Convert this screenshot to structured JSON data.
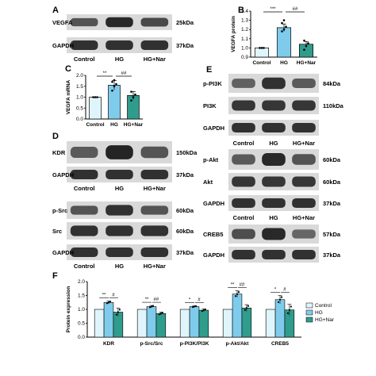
{
  "colors": {
    "control": "#dff5fb",
    "hg": "#7fcbec",
    "hg_nar": "#2f9c8c",
    "axis": "#000000",
    "blot_bg": "#d9d9d9",
    "band": "#1e1e1e"
  },
  "panels": {
    "A": {
      "label": "A",
      "blots": [
        {
          "name": "VEGFA",
          "kda": "25kDa",
          "intensity": [
            0.55,
            0.9,
            0.65
          ]
        },
        {
          "name": "GAPDH",
          "kda": "37kDa",
          "intensity": [
            0.85,
            0.85,
            0.85
          ]
        }
      ],
      "groups": [
        "Control",
        "HG",
        "HG+Nar"
      ]
    },
    "B": {
      "label": "B"
    },
    "C": {
      "label": "C"
    },
    "D": {
      "label": "D",
      "blots_top": [
        {
          "name": "KDR",
          "kda": "150kDa",
          "intensity": [
            0.5,
            0.95,
            0.55
          ]
        },
        {
          "name": "GAPDH",
          "kda": "37kDa",
          "intensity": [
            0.85,
            0.85,
            0.85
          ]
        }
      ],
      "groups_top": [
        "Control",
        "HG",
        "HG+Nar"
      ],
      "blots_bottom": [
        {
          "name": "p-Src",
          "kda": "60kDa",
          "intensity": [
            0.55,
            0.85,
            0.55
          ]
        },
        {
          "name": "Src",
          "kda": "60kDa",
          "intensity": [
            0.85,
            0.85,
            0.85
          ]
        },
        {
          "name": "GAPDH",
          "kda": "37kDa",
          "intensity": [
            0.85,
            0.85,
            0.85
          ]
        }
      ],
      "groups_bottom": [
        "Control",
        "HG",
        "HG+Nar"
      ]
    },
    "E": {
      "label": "E",
      "blots_1": [
        {
          "name": "p-PI3K",
          "kda": "84kDa",
          "intensity": [
            0.45,
            0.85,
            0.5
          ]
        },
        {
          "name": "PI3K",
          "kda": "110kDa",
          "intensity": [
            0.8,
            0.8,
            0.8
          ]
        },
        {
          "name": "GAPDH",
          "kda": "",
          "intensity": [
            0.85,
            0.85,
            0.85
          ]
        }
      ],
      "groups_1": [
        "Control",
        "HG",
        "HG+Nar"
      ],
      "blots_2": [
        {
          "name": "p-Akt",
          "kda": "60kDa",
          "intensity": [
            0.5,
            0.9,
            0.55
          ]
        },
        {
          "name": "Akt",
          "kda": "60kDa",
          "intensity": [
            0.8,
            0.8,
            0.8
          ]
        },
        {
          "name": "GAPDH",
          "kda": "37kDa",
          "intensity": [
            0.85,
            0.85,
            0.85
          ]
        }
      ],
      "groups_2": [
        "Control",
        "HG",
        "HG+Nar"
      ],
      "blots_3": [
        {
          "name": "CREB5",
          "kda": "57kDa",
          "intensity": [
            0.6,
            0.9,
            0.4
          ]
        },
        {
          "name": "GAPDH",
          "kda": "37kDa",
          "intensity": [
            0.85,
            0.85,
            0.85
          ]
        }
      ]
    },
    "F": {
      "label": "F"
    }
  },
  "chart_data": [
    {
      "panel": "B",
      "type": "bar",
      "categories": [
        "Control",
        "HG",
        "HG+Nar"
      ],
      "values": [
        1.0,
        1.22,
        1.04
      ],
      "errors": [
        0.0,
        0.04,
        0.03
      ],
      "points": [
        [
          1.0,
          1.0,
          1.0
        ],
        [
          1.18,
          1.2,
          1.23,
          1.27,
          1.3
        ],
        [
          0.98,
          1.02,
          1.05,
          1.08
        ]
      ],
      "ylabel": "VEGFA protein",
      "ylim": [
        0.9,
        1.4
      ],
      "yticks": [
        "0.9",
        "1.0",
        "1.1",
        "1.2",
        "1.3",
        "1.4"
      ],
      "significance": [
        {
          "from": 0,
          "to": 1,
          "label": "***"
        },
        {
          "from": 1,
          "to": 2,
          "label": "##"
        }
      ]
    },
    {
      "panel": "C",
      "type": "bar",
      "categories": [
        "Control",
        "HG",
        "HG+Nar"
      ],
      "values": [
        1.0,
        1.55,
        1.08
      ],
      "errors": [
        0.0,
        0.22,
        0.18
      ],
      "points": [
        [
          1.0,
          1.0,
          1.0
        ],
        [
          1.3,
          1.5,
          1.6,
          1.7,
          1.78
        ],
        [
          0.85,
          1.0,
          1.12,
          1.25
        ]
      ],
      "ylabel": "VEGFA mRNA",
      "ylim": [
        0.0,
        2.0
      ],
      "yticks": [
        "0.0",
        "0.5",
        "1.0",
        "1.5",
        "2.0"
      ],
      "significance": [
        {
          "from": 0,
          "to": 1,
          "label": "**"
        },
        {
          "from": 1,
          "to": 2,
          "label": "##"
        }
      ]
    },
    {
      "panel": "F",
      "type": "bar",
      "categories": [
        "KDR",
        "p-Src/Src",
        "p-PI3K/PI3K",
        "p-Akt/Akt",
        "CREB5"
      ],
      "series": [
        {
          "name": "Control",
          "values": [
            1.0,
            1.0,
            1.0,
            1.0,
            1.0
          ],
          "errors": [
            0.0,
            0.0,
            0.0,
            0.0,
            0.0
          ]
        },
        {
          "name": "HG",
          "values": [
            1.25,
            1.1,
            1.1,
            1.55,
            1.35
          ],
          "errors": [
            0.05,
            0.04,
            0.03,
            0.12,
            0.15
          ]
        },
        {
          "name": "HG+Nar",
          "values": [
            0.9,
            0.85,
            0.97,
            1.05,
            0.98
          ],
          "errors": [
            0.15,
            0.05,
            0.05,
            0.12,
            0.2
          ]
        }
      ],
      "ylabel": "Protein expression",
      "ylim": [
        0.0,
        2.0
      ],
      "yticks": [
        "0.0",
        "0.5",
        "1.0",
        "1.5",
        "2.0"
      ],
      "legend": {
        "placement": "right",
        "entries": [
          "Control",
          "HG",
          "HG+Nar"
        ]
      },
      "significance": [
        {
          "category": 0,
          "pairs": [
            "**",
            "#"
          ]
        },
        {
          "category": 1,
          "pairs": [
            "**",
            "##"
          ]
        },
        {
          "category": 2,
          "pairs": [
            "*",
            "#"
          ]
        },
        {
          "category": 3,
          "pairs": [
            "**",
            "##"
          ]
        },
        {
          "category": 4,
          "pairs": [
            "*",
            "#"
          ]
        }
      ]
    }
  ]
}
